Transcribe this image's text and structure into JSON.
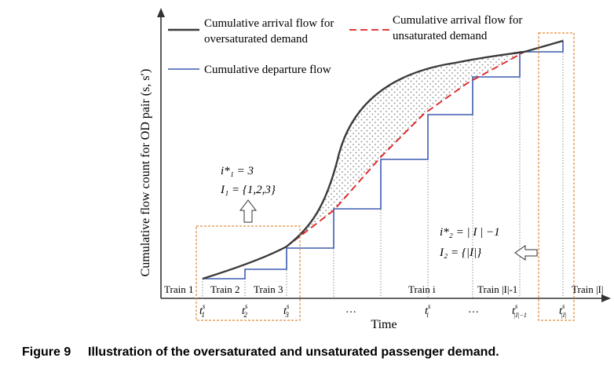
{
  "caption": {
    "label": "Figure 9",
    "text": "Illustration of the oversaturated and unsaturated passenger demand."
  },
  "axes": {
    "ylabel": "Cumulative flow count for OD pair (s, s′)",
    "xlabel": "Time"
  },
  "legend": {
    "oversat": [
      "Cumulative arrival flow for",
      "oversaturated demand"
    ],
    "unsat": [
      "Cumulative arrival flow for",
      "unsaturated demand"
    ],
    "departure": "Cumulative departure flow"
  },
  "trains": [
    "Train 1",
    "Train 2",
    "Train 3",
    "Train i",
    "Train |I|-1",
    "Train |I|"
  ],
  "ticks": [
    {
      "base": "t",
      "sup": "s",
      "sub": "1"
    },
    {
      "base": "t",
      "sup": "s",
      "sub": "2"
    },
    {
      "base": "t",
      "sup": "s",
      "sub": "3"
    },
    {
      "base": "…",
      "sup": "",
      "sub": ""
    },
    {
      "base": "t",
      "sup": "s",
      "sub": "i"
    },
    {
      "base": "…",
      "sup": "",
      "sub": ""
    },
    {
      "base": "t",
      "sup": "s",
      "sub": "|I|−1"
    },
    {
      "base": "t",
      "sup": "s",
      "sub": "|I|"
    }
  ],
  "annotations": {
    "left": {
      "line1": "i*₁ = 3",
      "line2": "I₁ = {1,2,3}"
    },
    "right": {
      "line1": "i*₂ = | I | −1",
      "line2": "I₂ = {|I|}"
    }
  },
  "colors": {
    "arrival": "#3a3a3a",
    "unsat": "#e02020",
    "departure": "#3d5bb0",
    "box": "#e08a3c",
    "shade": "#9a9a9a"
  }
}
